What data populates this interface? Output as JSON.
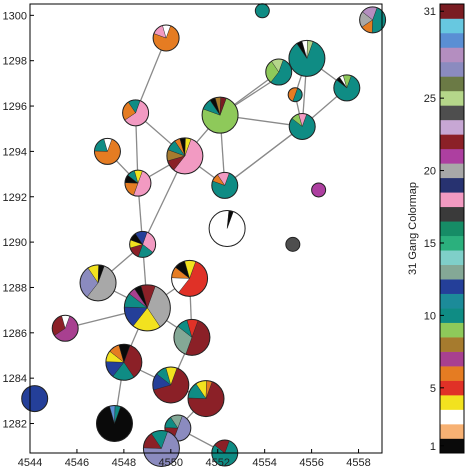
{
  "chart_data": {
    "type": "scatter",
    "description_kind": "pie-glyph network map",
    "xlim": [
      4544,
      4559
    ],
    "ylim": [
      1280.7,
      1300.5
    ],
    "x_ticks": [
      4544,
      4546,
      4548,
      4550,
      4552,
      4554,
      4556,
      4558
    ],
    "y_ticks": [
      1282,
      1284,
      1286,
      1288,
      1290,
      1292,
      1294,
      1296,
      1298,
      1300
    ],
    "grid": false,
    "colorbar": {
      "title": "31 Gang Colormap",
      "ticks": [
        1,
        5,
        10,
        15,
        20,
        25,
        31
      ],
      "colors": [
        "#0a0a0a",
        "#f7b173",
        "#ffffff",
        "#f2e21f",
        "#e03127",
        "#e57c22",
        "#a84090",
        "#a67b2e",
        "#8ec95a",
        "#0f8c84",
        "#1c8b99",
        "#243f99",
        "#84a896",
        "#7fcfc9",
        "#2bb07d",
        "#168c66",
        "#3a3a3a",
        "#f29ac2",
        "#273270",
        "#a8a8a8",
        "#ad3fa0",
        "#8b2027",
        "#c7a7d4",
        "#4e4e4e",
        "#b5d68a",
        "#6b7a45",
        "#8b8bbf",
        "#b48ec0",
        "#5a8fd4",
        "#67c8e0",
        "#7a1c22"
      ]
    },
    "nodes": [
      {
        "id": 1,
        "x": 4553.9,
        "y": 1300.2,
        "r": 1,
        "slices": [
          [
            10,
            1
          ]
        ]
      },
      {
        "id": 2,
        "x": 4558.6,
        "y": 1299.8,
        "r": 2,
        "slices": [
          [
            10,
            0.45
          ],
          [
            6,
            0.15
          ],
          [
            20,
            0.2
          ],
          [
            28,
            0.2
          ]
        ]
      },
      {
        "id": 3,
        "x": 4549.8,
        "y": 1299.0,
        "r": 2,
        "slices": [
          [
            6,
            0.75
          ],
          [
            18,
            0.15
          ],
          [
            3,
            0.1
          ]
        ]
      },
      {
        "id": 4,
        "x": 4555.8,
        "y": 1298.1,
        "r": 3,
        "slices": [
          [
            10,
            0.85
          ],
          [
            1,
            0.05
          ],
          [
            3,
            0.05
          ],
          [
            25,
            0.05
          ]
        ]
      },
      {
        "id": 5,
        "x": 4554.6,
        "y": 1297.5,
        "r": 2,
        "slices": [
          [
            10,
            0.55
          ],
          [
            9,
            0.3
          ],
          [
            25,
            0.15
          ]
        ]
      },
      {
        "id": 6,
        "x": 4557.5,
        "y": 1296.8,
        "r": 2,
        "slices": [
          [
            10,
            0.8
          ],
          [
            1,
            0.05
          ],
          [
            3,
            0.05
          ],
          [
            9,
            0.1
          ]
        ]
      },
      {
        "id": 7,
        "x": 4555.3,
        "y": 1296.5,
        "r": 1,
        "slices": [
          [
            10,
            0.5
          ],
          [
            6,
            0.5
          ]
        ]
      },
      {
        "id": 8,
        "x": 4548.5,
        "y": 1295.7,
        "r": 2,
        "slices": [
          [
            18,
            0.6
          ],
          [
            6,
            0.25
          ],
          [
            10,
            0.15
          ]
        ]
      },
      {
        "id": 9,
        "x": 4552.1,
        "y": 1295.6,
        "r": 3,
        "slices": [
          [
            9,
            0.75
          ],
          [
            10,
            0.1
          ],
          [
            1,
            0.05
          ],
          [
            8,
            0.05
          ],
          [
            31,
            0.05
          ]
        ]
      },
      {
        "id": 10,
        "x": 4555.6,
        "y": 1295.1,
        "r": 2,
        "slices": [
          [
            10,
            0.8
          ],
          [
            9,
            0.1
          ],
          [
            18,
            0.1
          ]
        ]
      },
      {
        "id": 11,
        "x": 4547.3,
        "y": 1294.0,
        "r": 2,
        "slices": [
          [
            6,
            0.7
          ],
          [
            10,
            0.2
          ],
          [
            3,
            0.1
          ]
        ]
      },
      {
        "id": 12,
        "x": 4550.6,
        "y": 1293.8,
        "r": 3,
        "slices": [
          [
            18,
            0.55
          ],
          [
            22,
            0.1
          ],
          [
            8,
            0.1
          ],
          [
            10,
            0.1
          ],
          [
            6,
            0.05
          ],
          [
            1,
            0.05
          ],
          [
            4,
            0.05
          ]
        ]
      },
      {
        "id": 13,
        "x": 4548.6,
        "y": 1292.6,
        "r": 2,
        "slices": [
          [
            18,
            0.5
          ],
          [
            6,
            0.2
          ],
          [
            1,
            0.1
          ],
          [
            10,
            0.1
          ],
          [
            4,
            0.1
          ]
        ]
      },
      {
        "id": 14,
        "x": 4552.3,
        "y": 1292.5,
        "r": 2,
        "slices": [
          [
            10,
            0.75
          ],
          [
            6,
            0.1
          ],
          [
            18,
            0.15
          ]
        ]
      },
      {
        "id": 15,
        "x": 4556.3,
        "y": 1292.3,
        "r": 1,
        "slices": [
          [
            21,
            1
          ]
        ]
      },
      {
        "id": 16,
        "x": 4552.4,
        "y": 1290.6,
        "r": 3,
        "slices": [
          [
            3,
            0.96
          ],
          [
            1,
            0.04
          ]
        ]
      },
      {
        "id": 17,
        "x": 4555.2,
        "y": 1289.9,
        "r": 1,
        "slices": [
          [
            24,
            1
          ]
        ]
      },
      {
        "id": 18,
        "x": 4548.8,
        "y": 1289.9,
        "r": 2,
        "slices": [
          [
            18,
            0.3
          ],
          [
            10,
            0.2
          ],
          [
            22,
            0.15
          ],
          [
            4,
            0.1
          ],
          [
            1,
            0.1
          ],
          [
            12,
            0.15
          ]
        ]
      },
      {
        "id": 19,
        "x": 4546.9,
        "y": 1288.2,
        "r": 3,
        "slices": [
          [
            20,
            0.55
          ],
          [
            27,
            0.3
          ],
          [
            4,
            0.1
          ],
          [
            1,
            0.05
          ]
        ]
      },
      {
        "id": 20,
        "x": 4550.8,
        "y": 1288.4,
        "r": 3,
        "slices": [
          [
            5,
            0.55
          ],
          [
            3,
            0.15
          ],
          [
            6,
            0.1
          ],
          [
            1,
            0.1
          ],
          [
            4,
            0.1
          ]
        ]
      },
      {
        "id": 21,
        "x": 4549.0,
        "y": 1287.1,
        "r": 4,
        "slices": [
          [
            20,
            0.35
          ],
          [
            4,
            0.2
          ],
          [
            12,
            0.15
          ],
          [
            10,
            0.1
          ],
          [
            7,
            0.05
          ],
          [
            1,
            0.05
          ],
          [
            22,
            0.1
          ]
        ]
      },
      {
        "id": 22,
        "x": 4545.5,
        "y": 1286.2,
        "r": 2,
        "slices": [
          [
            7,
            0.6
          ],
          [
            22,
            0.3
          ],
          [
            3,
            0.1
          ]
        ]
      },
      {
        "id": 23,
        "x": 4550.9,
        "y": 1285.8,
        "r": 3,
        "slices": [
          [
            22,
            0.5
          ],
          [
            13,
            0.3
          ],
          [
            10,
            0.1
          ],
          [
            5,
            0.1
          ]
        ]
      },
      {
        "id": 24,
        "x": 4548.0,
        "y": 1284.7,
        "r": 3,
        "slices": [
          [
            22,
            0.35
          ],
          [
            10,
            0.2
          ],
          [
            12,
            0.15
          ],
          [
            4,
            0.1
          ],
          [
            6,
            0.1
          ],
          [
            1,
            0.1
          ]
        ]
      },
      {
        "id": 25,
        "x": 4550.0,
        "y": 1283.7,
        "r": 3,
        "slices": [
          [
            22,
            0.65
          ],
          [
            12,
            0.15
          ],
          [
            10,
            0.1
          ],
          [
            4,
            0.1
          ]
        ]
      },
      {
        "id": 26,
        "x": 4544.2,
        "y": 1283.1,
        "r": 2,
        "slices": [
          [
            12,
            1
          ]
        ]
      },
      {
        "id": 27,
        "x": 4551.5,
        "y": 1283.1,
        "r": 3,
        "slices": [
          [
            22,
            0.7
          ],
          [
            10,
            0.15
          ],
          [
            4,
            0.1
          ],
          [
            6,
            0.05
          ]
        ]
      },
      {
        "id": 28,
        "x": 4547.6,
        "y": 1282.0,
        "r": 3,
        "slices": [
          [
            1,
            0.9
          ],
          [
            29,
            0.05
          ],
          [
            10,
            0.05
          ]
        ]
      },
      {
        "id": 29,
        "x": 4550.3,
        "y": 1281.8,
        "r": 2,
        "slices": [
          [
            27,
            0.5
          ],
          [
            22,
            0.2
          ],
          [
            10,
            0.15
          ],
          [
            13,
            0.15
          ]
        ]
      },
      {
        "id": 30,
        "x": 4549.6,
        "y": 1280.9,
        "r": 3,
        "slices": [
          [
            27,
            0.7
          ],
          [
            22,
            0.15
          ],
          [
            10,
            0.15
          ]
        ]
      },
      {
        "id": 31,
        "x": 4552.3,
        "y": 1280.7,
        "r": 2,
        "slices": [
          [
            10,
            0.8
          ],
          [
            22,
            0.2
          ]
        ]
      }
    ],
    "edges": [
      [
        3,
        8
      ],
      [
        4,
        5
      ],
      [
        4,
        6
      ],
      [
        4,
        7
      ],
      [
        4,
        9
      ],
      [
        4,
        10
      ],
      [
        5,
        9
      ],
      [
        6,
        10
      ],
      [
        7,
        10
      ],
      [
        8,
        12
      ],
      [
        8,
        13
      ],
      [
        9,
        12
      ],
      [
        9,
        14
      ],
      [
        9,
        10
      ],
      [
        10,
        14
      ],
      [
        11,
        13
      ],
      [
        12,
        13
      ],
      [
        12,
        14
      ],
      [
        14,
        10
      ],
      [
        13,
        18
      ],
      [
        18,
        19
      ],
      [
        18,
        21
      ],
      [
        19,
        21
      ],
      [
        20,
        21
      ],
      [
        20,
        23
      ],
      [
        21,
        22
      ],
      [
        21,
        23
      ],
      [
        21,
        24
      ],
      [
        23,
        25
      ],
      [
        24,
        25
      ],
      [
        25,
        27
      ],
      [
        27,
        29
      ],
      [
        29,
        31
      ],
      [
        30,
        29
      ],
      [
        28,
        24
      ],
      [
        12,
        18
      ]
    ]
  }
}
